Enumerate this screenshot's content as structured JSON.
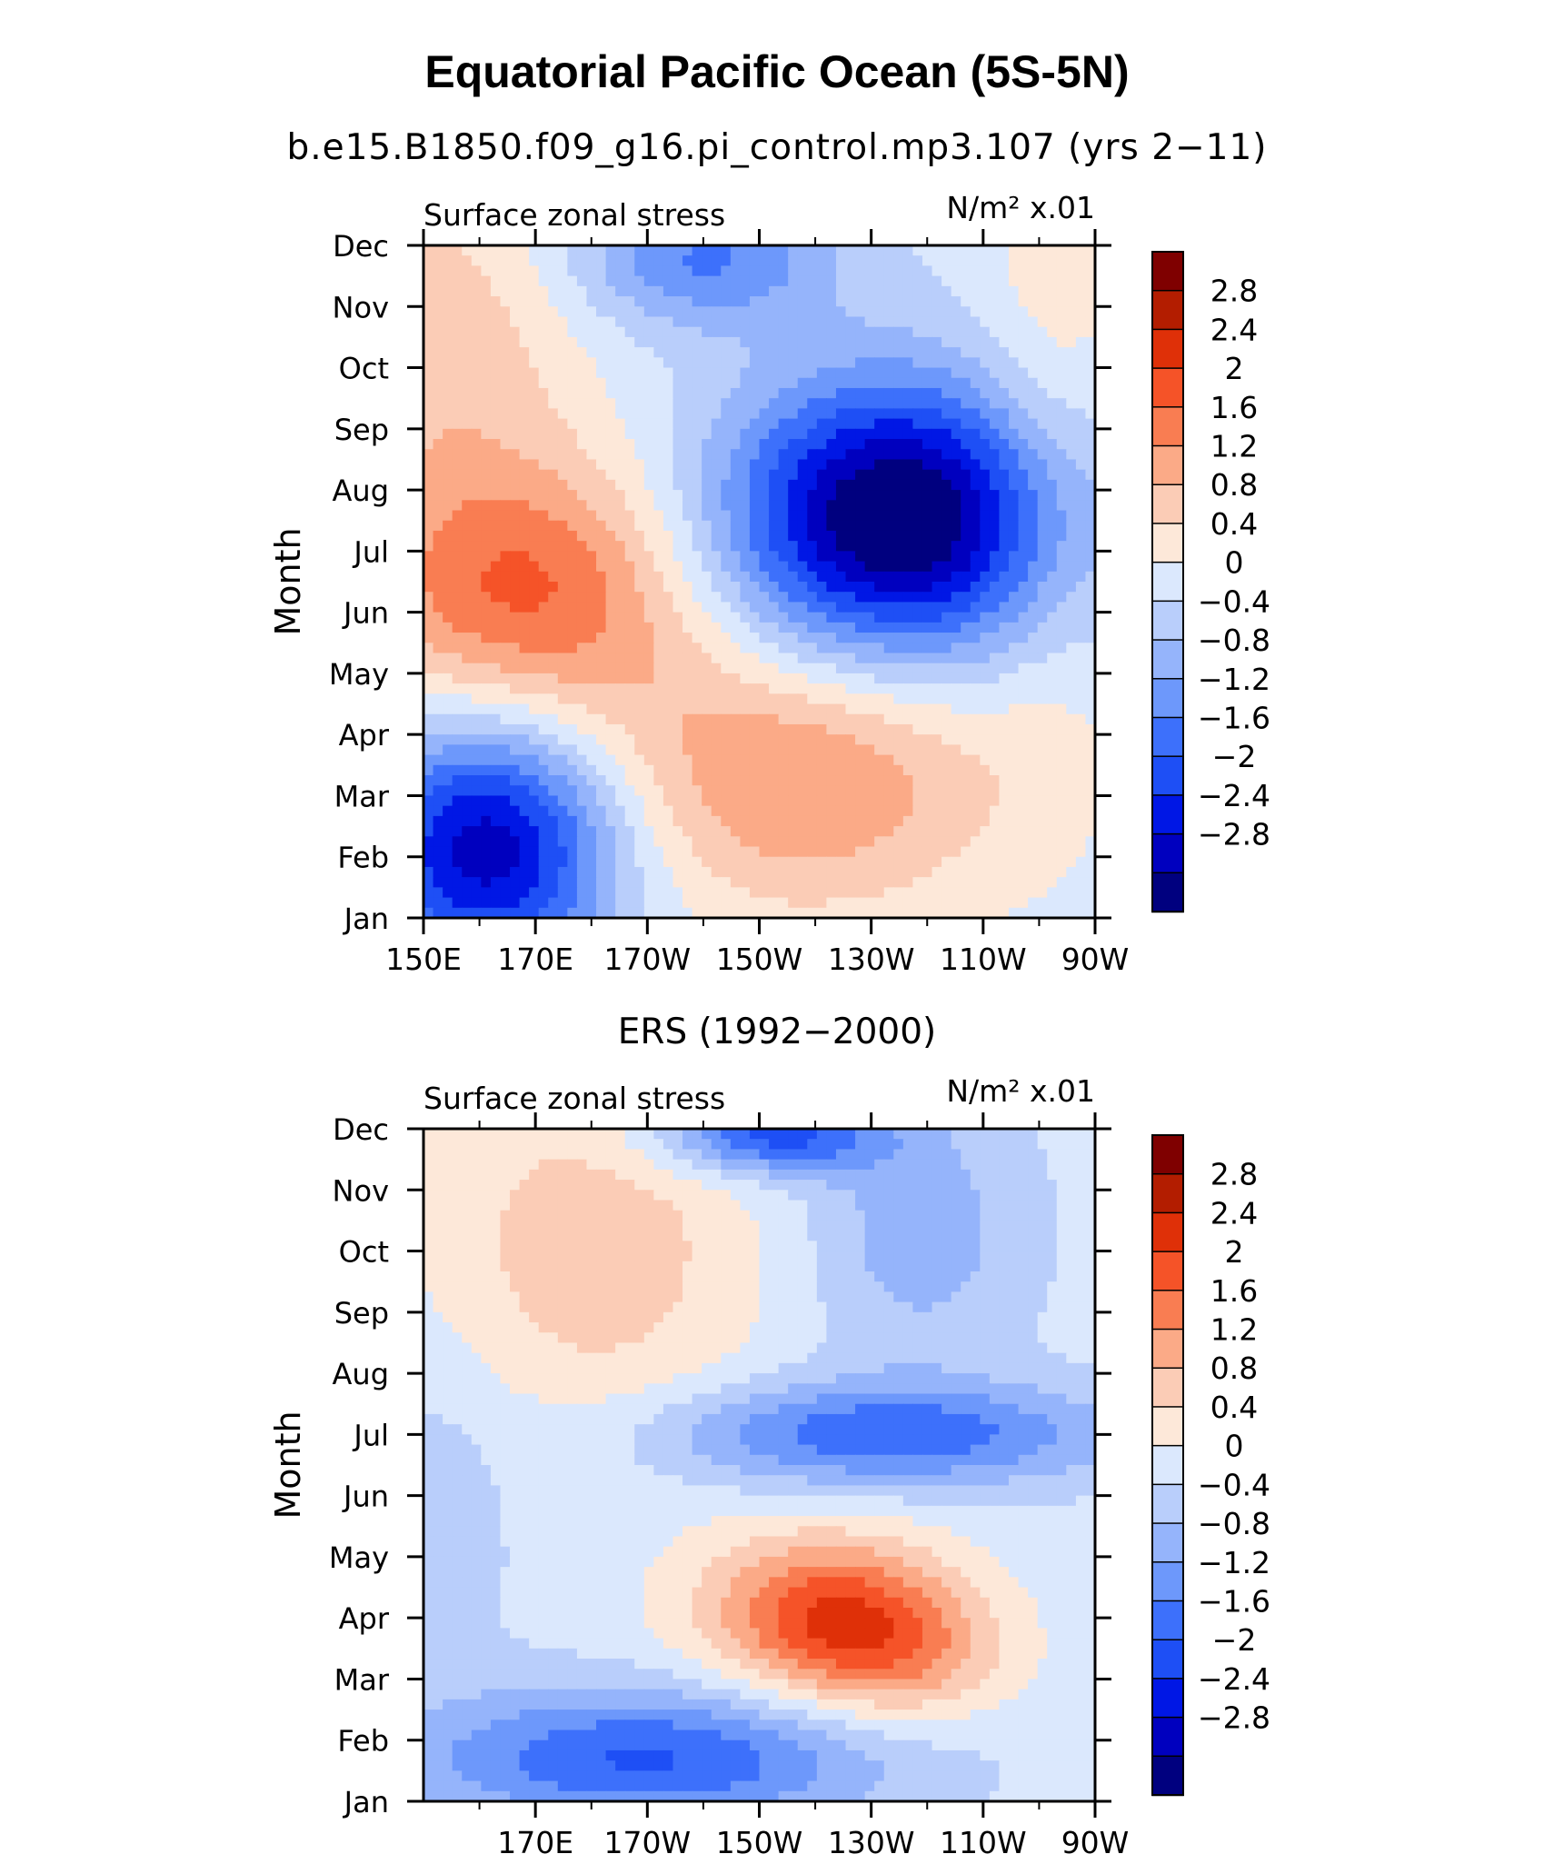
{
  "title": "Equatorial Pacific Ocean (5S-5N)",
  "subtitle": "b.e15.B1850.f09_g16.pi_control.mp3.107 (yrs 2−11)",
  "colors": {
    "levels": [
      "#00007f",
      "#0000bf",
      "#0017e5",
      "#1e4ff5",
      "#3d70fb",
      "#6d98fb",
      "#95b4fb",
      "#b9cefb",
      "#dbe8fd",
      "#fde8d9",
      "#fbccb6",
      "#fbaa87",
      "#f97d52",
      "#f55328",
      "#df3008",
      "#b31d00",
      "#7f0000"
    ]
  },
  "chart_data": [
    {
      "type": "heatmap",
      "title": "",
      "left_label": "Surface zonal stress",
      "right_label": "N/m² x.01",
      "xlabel": "",
      "ylabel": "Month",
      "x_ticks": [
        "150E",
        "170E",
        "170W",
        "150W",
        "130W",
        "110W",
        "90W"
      ],
      "y_ticks": [
        "Jan",
        "Feb",
        "Mar",
        "Apr",
        "May",
        "Jun",
        "Jul",
        "Aug",
        "Sep",
        "Oct",
        "Nov",
        "Dec"
      ],
      "xlim_deg_east": [
        150,
        270
      ],
      "contour_levels": [
        -2.8,
        -2.4,
        -2.0,
        -1.6,
        -1.2,
        -0.8,
        -0.4,
        0,
        0.4,
        0.8,
        1.2,
        1.6,
        2.0,
        2.4,
        2.8
      ],
      "colorbar_labels": [
        "2.8",
        "2.4",
        "2",
        "1.6",
        "1.2",
        "0.8",
        "0.4",
        "0",
        "−0.4",
        "−0.8",
        "−1.2",
        "−1.6",
        "−2",
        "−2.4",
        "−2.8"
      ],
      "features": [
        {
          "lon": 235,
          "month": 7.5,
          "sigma_lon": 22,
          "sigma_month": 1.6,
          "amp": -3.6
        },
        {
          "lon": 162,
          "month": 2.2,
          "sigma_lon": 16,
          "sigma_month": 1.5,
          "amp": -2.9
        },
        {
          "lon": 200,
          "month": 11.8,
          "sigma_lon": 16,
          "sigma_month": 0.8,
          "amp": -1.4
        },
        {
          "lon": 168,
          "month": 6.3,
          "sigma_lon": 22,
          "sigma_month": 1.6,
          "amp": 1.9
        },
        {
          "lon": 218,
          "month": 3.3,
          "sigma_lon": 26,
          "sigma_month": 1.6,
          "amp": 1.5
        },
        {
          "lon": 152,
          "month": 10.5,
          "sigma_lon": 18,
          "sigma_month": 2.0,
          "amp": 0.9
        },
        {
          "lon": 262,
          "month": 9,
          "sigma_lon": 10,
          "sigma_month": 3.5,
          "amp": 0.6
        }
      ]
    },
    {
      "type": "heatmap",
      "title": "ERS (1992−2000)",
      "left_label": "Surface zonal stress",
      "right_label": "N/m² x.01",
      "xlabel": "",
      "ylabel": "Month",
      "x_ticks": [
        "170E",
        "170W",
        "150W",
        "130W",
        "110W",
        "90W"
      ],
      "y_ticks": [
        "Jan",
        "Feb",
        "Mar",
        "Apr",
        "May",
        "Jun",
        "Jul",
        "Aug",
        "Sep",
        "Oct",
        "Nov",
        "Dec"
      ],
      "xlim_deg_east": [
        150,
        270
      ],
      "contour_levels": [
        -2.8,
        -2.4,
        -2.0,
        -1.6,
        -1.2,
        -0.8,
        -0.4,
        0,
        0.4,
        0.8,
        1.2,
        1.6,
        2.0,
        2.4,
        2.8
      ],
      "colorbar_labels": [
        "2.8",
        "2.4",
        "2",
        "1.6",
        "1.2",
        "0.8",
        "0.4",
        "0",
        "−0.4",
        "−0.8",
        "−1.2",
        "−1.6",
        "−2",
        "−2.4",
        "−2.8"
      ],
      "features": [
        {
          "lon": 222,
          "month": 4.1,
          "sigma_lon": 16,
          "sigma_month": 0.9,
          "amp": 2.0
        },
        {
          "lon": 235,
          "month": 3.3,
          "sigma_lon": 14,
          "sigma_month": 0.8,
          "amp": 1.0
        },
        {
          "lon": 232,
          "month": 7.0,
          "sigma_lon": 28,
          "sigma_month": 0.6,
          "amp": -1.7
        },
        {
          "lon": 190,
          "month": 1.7,
          "sigma_lon": 30,
          "sigma_month": 0.8,
          "amp": -1.8
        },
        {
          "lon": 212,
          "month": 11.9,
          "sigma_lon": 14,
          "sigma_month": 0.45,
          "amp": -2.0
        },
        {
          "lon": 180,
          "month": 10.0,
          "sigma_lon": 22,
          "sigma_month": 2.2,
          "amp": 0.9
        },
        {
          "lon": 238,
          "month": 10.3,
          "sigma_lon": 14,
          "sigma_month": 1.5,
          "amp": -0.8
        },
        {
          "lon": 150,
          "month": 6.0,
          "sigma_lon": 14,
          "sigma_month": 2.0,
          "amp": -0.4
        }
      ]
    }
  ]
}
